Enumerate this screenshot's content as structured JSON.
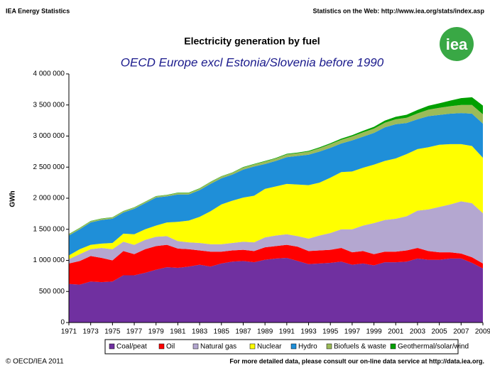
{
  "header": {
    "left": "IEA Energy Statistics",
    "right": "Statistics on the Web: http://www.iea.org/stats/index.asp",
    "logo": "iea"
  },
  "footer": {
    "left": "© OECD/IEA 2011",
    "right": "For more detailed data, please consult our on-line data service at http://data.iea.org."
  },
  "chart_data": {
    "type": "stacked_area",
    "title": "Electricity generation by fuel",
    "subtitle": "OECD Europe excl Estonia/Slovenia before 1990",
    "y_label": "GWh",
    "x": [
      1971,
      1972,
      1973,
      1974,
      1975,
      1976,
      1977,
      1978,
      1979,
      1980,
      1981,
      1982,
      1983,
      1984,
      1985,
      1986,
      1987,
      1988,
      1989,
      1990,
      1991,
      1992,
      1993,
      1994,
      1995,
      1996,
      1997,
      1998,
      1999,
      2000,
      2001,
      2002,
      2003,
      2004,
      2005,
      2006,
      2007,
      2008,
      2009
    ],
    "xlim": [
      1971,
      2009
    ],
    "xticks": [
      1971,
      1973,
      1975,
      1977,
      1979,
      1981,
      1983,
      1985,
      1987,
      1989,
      1991,
      1993,
      1995,
      1997,
      1999,
      2001,
      2003,
      2005,
      2007,
      2009
    ],
    "ylim": [
      0,
      4000000
    ],
    "yticks": [
      0,
      {
        "value": 500000,
        "label": "500 000"
      },
      {
        "value": 1000000,
        "label": "1 000 000"
      },
      {
        "value": 1500000,
        "label": "1 500 000"
      },
      {
        "value": 2000000,
        "label": "2 000 000"
      },
      {
        "value": 2500000,
        "label": "2 500 000"
      },
      {
        "value": 3000000,
        "label": "3 000 000"
      },
      {
        "value": 3500000,
        "label": "3 500 000"
      },
      {
        "value": 4000000,
        "label": "4 000 000"
      }
    ],
    "grid": false,
    "legend": "bottom",
    "series": [
      {
        "name": "Coal/peat",
        "color": "#7030a0",
        "values": [
          620000,
          610000,
          660000,
          650000,
          660000,
          760000,
          760000,
          800000,
          850000,
          890000,
          880000,
          900000,
          930000,
          900000,
          950000,
          980000,
          990000,
          970000,
          1010000,
          1030000,
          1040000,
          990000,
          940000,
          950000,
          960000,
          980000,
          930000,
          950000,
          920000,
          970000,
          970000,
          980000,
          1030000,
          1010000,
          1010000,
          1030000,
          1030000,
          960000,
          870000
        ]
      },
      {
        "name": "Oil",
        "color": "#ff0000",
        "values": [
          330000,
          380000,
          410000,
          390000,
          340000,
          390000,
          340000,
          380000,
          380000,
          360000,
          310000,
          280000,
          230000,
          240000,
          190000,
          180000,
          180000,
          180000,
          200000,
          200000,
          210000,
          230000,
          210000,
          210000,
          210000,
          220000,
          200000,
          200000,
          180000,
          170000,
          170000,
          180000,
          170000,
          140000,
          120000,
          100000,
          80000,
          90000,
          80000
        ]
      },
      {
        "name": "Natural gas",
        "color": "#b4a7d0",
        "values": [
          70000,
          110000,
          110000,
          160000,
          180000,
          150000,
          150000,
          150000,
          150000,
          140000,
          120000,
          110000,
          120000,
          120000,
          120000,
          120000,
          130000,
          140000,
          160000,
          170000,
          170000,
          170000,
          200000,
          240000,
          270000,
          300000,
          370000,
          410000,
          500000,
          510000,
          530000,
          550000,
          600000,
          670000,
          730000,
          770000,
          840000,
          870000,
          810000
        ]
      },
      {
        "name": "Nuclear",
        "color": "#ffff00",
        "values": [
          60000,
          80000,
          70000,
          70000,
          100000,
          130000,
          170000,
          170000,
          180000,
          220000,
          310000,
          350000,
          420000,
          530000,
          640000,
          680000,
          710000,
          750000,
          780000,
          790000,
          810000,
          830000,
          860000,
          850000,
          890000,
          920000,
          930000,
          930000,
          940000,
          950000,
          970000,
          1000000,
          990000,
          1000000,
          1000000,
          970000,
          920000,
          920000,
          890000
        ]
      },
      {
        "name": "Hydro",
        "color": "#1f8fd8",
        "values": [
          320000,
          320000,
          360000,
          380000,
          390000,
          340000,
          410000,
          420000,
          450000,
          420000,
          440000,
          420000,
          430000,
          440000,
          420000,
          420000,
          450000,
          470000,
          400000,
          410000,
          430000,
          460000,
          490000,
          500000,
          480000,
          460000,
          500000,
          500000,
          510000,
          540000,
          550000,
          500000,
          480000,
          500000,
          480000,
          490000,
          500000,
          520000,
          550000
        ]
      },
      {
        "name": "Biofuels & waste",
        "color": "#9bbb59",
        "values": [
          20000,
          20000,
          20000,
          20000,
          20000,
          20000,
          20000,
          20000,
          20000,
          20000,
          25000,
          25000,
          25000,
          30000,
          30000,
          30000,
          35000,
          35000,
          40000,
          40000,
          45000,
          45000,
          50000,
          55000,
          60000,
          60000,
          65000,
          70000,
          70000,
          75000,
          80000,
          85000,
          95000,
          105000,
          115000,
          120000,
          130000,
          140000,
          150000
        ]
      },
      {
        "name": "Geothermal/solar/wind",
        "color": "#00a000",
        "values": [
          5000,
          5000,
          5000,
          5000,
          5000,
          5000,
          5000,
          5000,
          5000,
          5000,
          5000,
          5000,
          5000,
          5000,
          5000,
          5000,
          6000,
          7000,
          8000,
          8000,
          10000,
          10000,
          12000,
          14000,
          15000,
          18000,
          20000,
          24000,
          28000,
          34000,
          40000,
          48000,
          55000,
          62000,
          72000,
          90000,
          110000,
          125000,
          140000
        ]
      }
    ]
  }
}
